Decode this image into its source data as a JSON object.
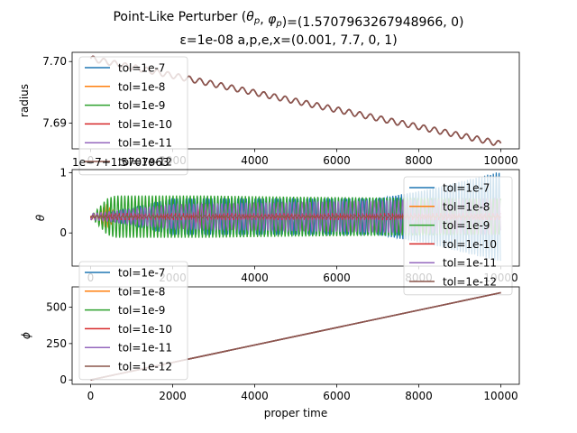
{
  "title_line1": "Point-Like Perturber (θ_p, φ_p)=(1.5707963267948966, 0)",
  "title_line2_eps": "ε=1e-08 a,p,e,x=(0.001, 7.7, 0, 1)",
  "chart_data": [
    {
      "type": "line",
      "name": "radius",
      "ylabel": "radius",
      "xlabel": "",
      "xlim": [
        -450,
        10450
      ],
      "ylim": [
        7.6858,
        7.7015
      ],
      "xticks": [
        0,
        2000,
        4000,
        6000,
        8000,
        10000
      ],
      "xtick_labels": [
        "0",
        "2000",
        "4000",
        "6000",
        "8000",
        "10000"
      ],
      "yticks": [
        7.69,
        7.7
      ],
      "ytick_labels": [
        "7.69",
        "7.70"
      ],
      "legend_loc": "upper left",
      "series": [
        {
          "name": "tol=1e-7",
          "color": "#1f77b4"
        },
        {
          "name": "tol=1e-8",
          "color": "#ff7f0e"
        },
        {
          "name": "tol=1e-9",
          "color": "#2ca02c"
        },
        {
          "name": "tol=1e-10",
          "color": "#d62728"
        },
        {
          "name": "tol=1e-11",
          "color": "#9467bd"
        },
        {
          "name": "tol=1e-12",
          "color": "#8c564b"
        }
      ],
      "trend": {
        "x": [
          0,
          10000
        ],
        "y": [
          7.7005,
          7.6866
        ]
      },
      "oscillation": {
        "period": 260,
        "amplitude": 0.00045
      }
    },
    {
      "type": "line",
      "name": "theta",
      "ylabel": "θ",
      "xlabel": "",
      "offset_text": "1e−7+1.5707963",
      "xlim": [
        -450,
        10450
      ],
      "ylim": [
        -0.55,
        1.05
      ],
      "xticks": [
        0,
        2000,
        4000,
        6000,
        8000,
        10000
      ],
      "xtick_labels": [
        "0",
        "2000",
        "4000",
        "6000",
        "8000",
        "10000"
      ],
      "yticks": [
        0,
        1
      ],
      "ytick_labels": [
        "0",
        "1"
      ],
      "legend_loc": "right",
      "center": 0.27,
      "series": [
        {
          "name": "tol=1e-7",
          "color": "#1f77b4",
          "envelope": [
            [
              0,
              0.0
            ],
            [
              2000,
              0.3
            ],
            [
              7000,
              0.3
            ],
            [
              8200,
              0.45
            ],
            [
              10000,
              0.75
            ]
          ]
        },
        {
          "name": "tol=1e-8",
          "color": "#ff7f0e",
          "envelope": [
            [
              0,
              0.0
            ],
            [
              400,
              0.2
            ],
            [
              700,
              0.0
            ],
            [
              10000,
              0.0
            ]
          ]
        },
        {
          "name": "tol=1e-9",
          "color": "#2ca02c",
          "envelope": [
            [
              0,
              0.0
            ],
            [
              400,
              0.3
            ],
            [
              600,
              0.35
            ],
            [
              2800,
              0.35
            ],
            [
              5000,
              0.33
            ],
            [
              9500,
              0.3
            ],
            [
              10000,
              0.3
            ]
          ]
        },
        {
          "name": "tol=1e-10",
          "color": "#d62728",
          "envelope": [
            [
              0,
              0.05
            ],
            [
              2500,
              0.05
            ],
            [
              2700,
              0.22
            ],
            [
              2850,
              0.05
            ],
            [
              10000,
              0.05
            ]
          ]
        },
        {
          "name": "tol=1e-11",
          "color": "#9467bd",
          "envelope": [
            [
              0,
              0.05
            ],
            [
              2000,
              0.2
            ],
            [
              6000,
              0.25
            ],
            [
              10000,
              0.3
            ]
          ]
        },
        {
          "name": "tol=1e-12",
          "color": "#8c564b",
          "envelope": [
            [
              0,
              0.02
            ],
            [
              10000,
              0.02
            ]
          ]
        }
      ]
    },
    {
      "type": "line",
      "name": "phi",
      "ylabel": "ϕ",
      "xlabel": "proper time",
      "xlim": [
        -450,
        10450
      ],
      "ylim": [
        -30,
        640
      ],
      "xticks": [
        0,
        2000,
        4000,
        6000,
        8000,
        10000
      ],
      "xtick_labels": [
        "0",
        "2000",
        "4000",
        "6000",
        "8000",
        "10000"
      ],
      "yticks": [
        0,
        250,
        500
      ],
      "ytick_labels": [
        "0",
        "250",
        "500"
      ],
      "legend_loc": "upper left",
      "series": [
        {
          "name": "tol=1e-7",
          "color": "#1f77b4",
          "x": [
            0,
            10000
          ],
          "y": [
            0,
            600
          ]
        },
        {
          "name": "tol=1e-8",
          "color": "#ff7f0e",
          "x": [
            0,
            10000
          ],
          "y": [
            0,
            600
          ]
        },
        {
          "name": "tol=1e-9",
          "color": "#2ca02c",
          "x": [
            0,
            10000
          ],
          "y": [
            0,
            600
          ]
        },
        {
          "name": "tol=1e-10",
          "color": "#d62728",
          "x": [
            0,
            10000
          ],
          "y": [
            0,
            600
          ]
        },
        {
          "name": "tol=1e-11",
          "color": "#9467bd",
          "x": [
            0,
            10000
          ],
          "y": [
            0,
            600
          ]
        },
        {
          "name": "tol=1e-12",
          "color": "#8c564b",
          "x": [
            0,
            10000
          ],
          "y": [
            0,
            600
          ]
        }
      ]
    }
  ]
}
